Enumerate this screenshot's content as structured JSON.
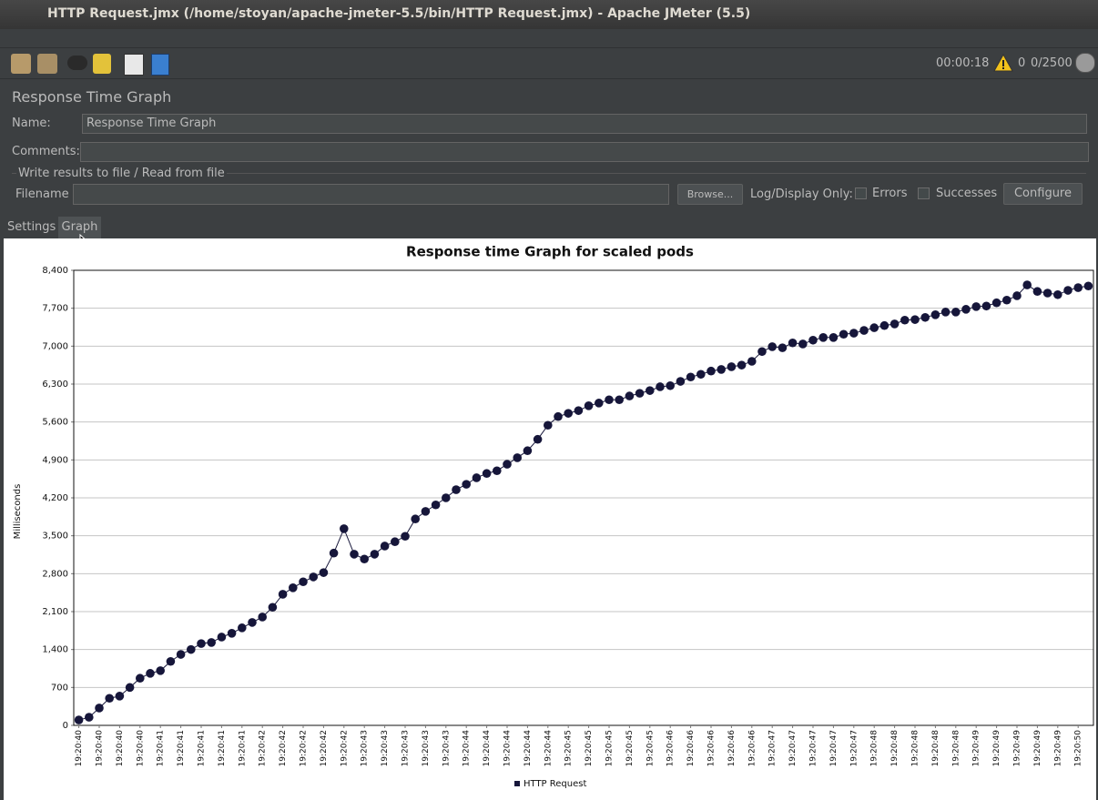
{
  "window": {
    "title": "HTTP Request.jmx (/home/stoyan/apache-jmeter-5.5/bin/HTTP Request.jmx) - Apache JMeter (5.5)"
  },
  "toolbar": {
    "elapsed": "00:00:18",
    "warnings": "0",
    "threads": "0/2500"
  },
  "panel": {
    "title": "Response Time Graph",
    "name_label": "Name:",
    "name_value": "Response Time Graph",
    "comments_label": "Comments:",
    "file_group": "Write results to file / Read from file",
    "filename_label": "Filename",
    "browse": "Browse...",
    "log_display": "Log/Display Only:",
    "errors": "Errors",
    "successes": "Successes",
    "configure": "Configure"
  },
  "tabs": [
    "Settings",
    "Graph"
  ],
  "chart_data": {
    "type": "line",
    "title": "Response time Graph for scaled pods",
    "y_label": "Milliseconds",
    "categories": [
      "19:20:40",
      null,
      "19:20:40",
      null,
      "19:20:40",
      null,
      "19:20:40",
      null,
      "19:20:41",
      null,
      "19:20:41",
      null,
      "19:20:41",
      null,
      "19:20:41",
      null,
      "19:20:41",
      null,
      "19:20:42",
      null,
      "19:20:42",
      null,
      "19:20:42",
      null,
      "19:20:42",
      null,
      "19:20:42",
      null,
      "19:20:43",
      null,
      "19:20:43",
      null,
      "19:20:43",
      null,
      "19:20:43",
      null,
      "19:20:43",
      null,
      "19:20:44",
      null,
      "19:20:44",
      null,
      "19:20:44",
      null,
      "19:20:44",
      null,
      "19:20:44",
      null,
      "19:20:45",
      null,
      "19:20:45",
      null,
      "19:20:45",
      null,
      "19:20:45",
      null,
      "19:20:45",
      null,
      "19:20:46",
      null,
      "19:20:46",
      null,
      "19:20:46",
      null,
      "19:20:46",
      null,
      "19:20:46",
      null,
      "19:20:47",
      null,
      "19:20:47",
      null,
      "19:20:47",
      null,
      "19:20:47",
      null,
      "19:20:47",
      null,
      "19:20:48",
      null,
      "19:20:48",
      null,
      "19:20:48",
      null,
      "19:20:48",
      null,
      "19:20:48",
      null,
      "19:20:49",
      null,
      "19:20:49",
      null,
      "19:20:49",
      null,
      "19:20:49",
      null,
      "19:20:49",
      null,
      "19:20:50",
      null
    ],
    "series": [
      {
        "name": "HTTP Request",
        "color": "#16163a",
        "values": [
          100,
          150,
          320,
          500,
          540,
          700,
          870,
          960,
          1010,
          1180,
          1310,
          1400,
          1510,
          1530,
          1630,
          1700,
          1800,
          1900,
          2000,
          2180,
          2420,
          2540,
          2650,
          2740,
          2820,
          3180,
          3630,
          3160,
          3070,
          3160,
          3310,
          3390,
          3490,
          3810,
          3950,
          4070,
          4200,
          4350,
          4450,
          4570,
          4650,
          4700,
          4820,
          4940,
          5070,
          5280,
          5540,
          5700,
          5760,
          5810,
          5900,
          5950,
          6010,
          6010,
          6080,
          6130,
          6180,
          6250,
          6270,
          6350,
          6430,
          6480,
          6540,
          6570,
          6620,
          6650,
          6720,
          6900,
          6990,
          6970,
          7060,
          7040,
          7110,
          7160,
          7160,
          7220,
          7240,
          7290,
          7340,
          7380,
          7410,
          7480,
          7490,
          7530,
          7580,
          7630,
          7630,
          7680,
          7730,
          7740,
          7800,
          7850,
          7930,
          8130,
          8010,
          7980,
          7950,
          8030,
          8080,
          8110
        ]
      }
    ],
    "ylim": [
      0,
      8400
    ],
    "yticks": [
      0,
      700,
      {
        "value": 1400,
        "label": "1,400"
      },
      {
        "value": 2100,
        "label": "2,100"
      },
      {
        "value": 2800,
        "label": "2,800"
      },
      {
        "value": 3500,
        "label": "3,500"
      },
      {
        "value": 4200,
        "label": "4,200"
      },
      {
        "value": 4900,
        "label": "4,900"
      },
      {
        "value": 5600,
        "label": "5,600"
      },
      {
        "value": 6300,
        "label": "6,300"
      },
      {
        "value": 7000,
        "label": "7,000"
      },
      {
        "value": 7700,
        "label": "7,700"
      },
      {
        "value": 8400,
        "label": "8,400"
      }
    ],
    "grid": true,
    "legend": "bottom"
  }
}
